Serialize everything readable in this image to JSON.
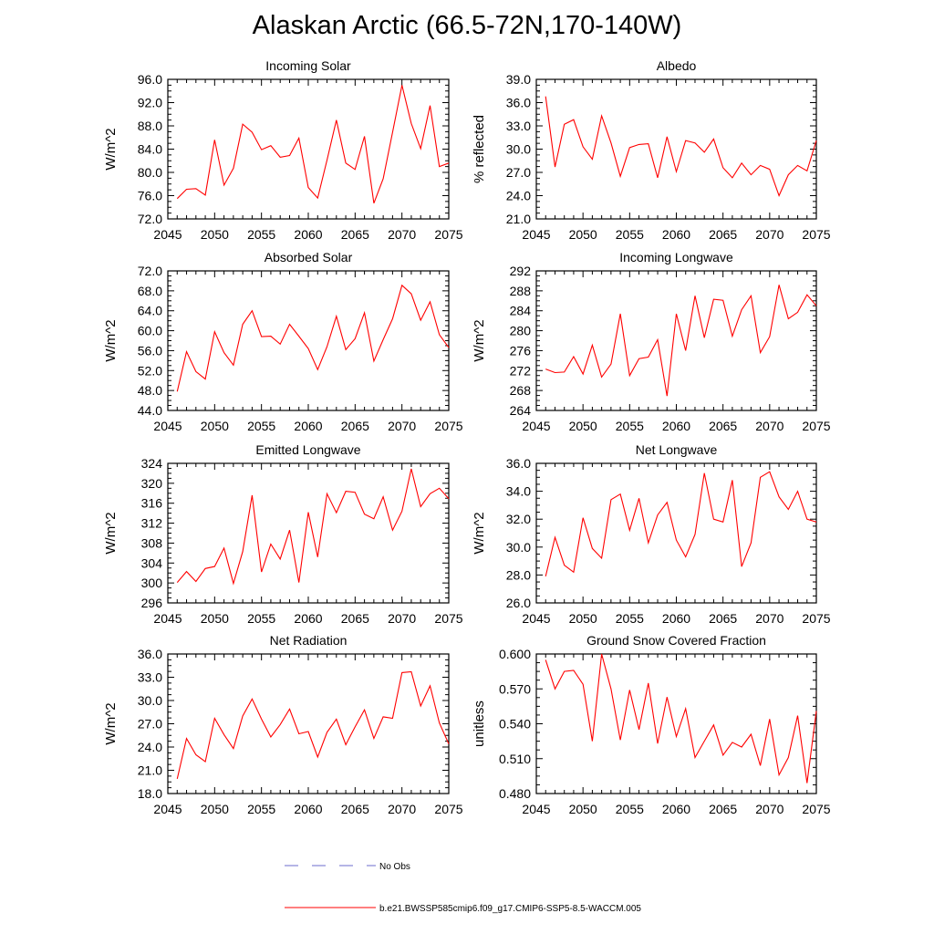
{
  "title": "Alaskan Arctic (66.5-72N,170-140W)",
  "colors": {
    "model": "#ff0000",
    "obs": "#6b6bcc",
    "axis": "#000000"
  },
  "legend": {
    "obs_label": "No Obs",
    "model_label": "b.e21.BWSSP585cmip6.f09_g17.CMIP6-SSP5-8.5-WACCM.005"
  },
  "chart_data": [
    {
      "type": "line",
      "title": "Incoming Solar",
      "ylabel": "W/m^2",
      "xlim": [
        2045,
        2075
      ],
      "ylim": [
        72.0,
        96.0
      ],
      "yticks": [
        "72.0",
        "76.0",
        "80.0",
        "84.0",
        "88.0",
        "92.0",
        "96.0"
      ],
      "xticks": [
        "2045",
        "2050",
        "2055",
        "2060",
        "2065",
        "2070",
        "2075"
      ],
      "series": [
        {
          "name": "b.e21.BWSSP585cmip6.f09_g17.CMIP6-SSP5-8.5-WACCM.005",
          "x": [
            2046,
            2047,
            2048,
            2049,
            2050,
            2051,
            2052,
            2053,
            2054,
            2055,
            2056,
            2057,
            2058,
            2059,
            2060,
            2061,
            2062,
            2063,
            2064,
            2065,
            2066,
            2067,
            2068,
            2069,
            2070,
            2071,
            2072,
            2073,
            2074,
            2075
          ],
          "y": [
            75.5,
            77.1,
            77.2,
            76.1,
            85.6,
            77.8,
            80.7,
            88.3,
            86.9,
            83.9,
            84.6,
            82.6,
            82.9,
            85.9,
            77.4,
            75.6,
            82.1,
            89.0,
            81.6,
            80.5,
            86.2,
            74.7,
            78.9,
            86.9,
            95.0,
            88.4,
            84.1,
            91.5,
            81.0,
            81.6
          ]
        }
      ]
    },
    {
      "type": "line",
      "title": "Albedo",
      "ylabel": "% reflected",
      "xlim": [
        2045,
        2075
      ],
      "ylim": [
        21.0,
        39.0
      ],
      "yticks": [
        "21.0",
        "24.0",
        "27.0",
        "30.0",
        "33.0",
        "36.0",
        "39.0"
      ],
      "xticks": [
        "2045",
        "2050",
        "2055",
        "2060",
        "2065",
        "2070",
        "2075"
      ],
      "series": [
        {
          "name": "b.e21.BWSSP585cmip6.f09_g17.CMIP6-SSP5-8.5-WACCM.005",
          "x": [
            2046,
            2047,
            2048,
            2049,
            2050,
            2051,
            2052,
            2053,
            2054,
            2055,
            2056,
            2057,
            2058,
            2059,
            2060,
            2061,
            2062,
            2063,
            2064,
            2065,
            2066,
            2067,
            2068,
            2069,
            2070,
            2071,
            2072,
            2073,
            2074,
            2075
          ],
          "y": [
            36.8,
            27.7,
            33.2,
            33.8,
            30.3,
            28.7,
            34.3,
            30.8,
            26.5,
            30.2,
            30.6,
            30.7,
            26.3,
            31.6,
            27.1,
            31.1,
            30.8,
            29.6,
            31.3,
            27.6,
            26.3,
            28.2,
            26.7,
            27.9,
            27.4,
            24.0,
            26.7,
            27.9,
            27.2,
            31.1
          ]
        }
      ]
    },
    {
      "type": "line",
      "title": "Absorbed Solar",
      "ylabel": "W/m^2",
      "xlim": [
        2045,
        2075
      ],
      "ylim": [
        44.0,
        72.0
      ],
      "yticks": [
        "44.0",
        "48.0",
        "52.0",
        "56.0",
        "60.0",
        "64.0",
        "68.0",
        "72.0"
      ],
      "xticks": [
        "2045",
        "2050",
        "2055",
        "2060",
        "2065",
        "2070",
        "2075"
      ],
      "series": [
        {
          "name": "b.e21.BWSSP585cmip6.f09_g17.CMIP6-SSP5-8.5-WACCM.005",
          "x": [
            2046,
            2047,
            2048,
            2049,
            2050,
            2051,
            2052,
            2053,
            2054,
            2055,
            2056,
            2057,
            2058,
            2059,
            2060,
            2061,
            2062,
            2063,
            2064,
            2065,
            2066,
            2067,
            2068,
            2069,
            2070,
            2071,
            2072,
            2073,
            2074,
            2075
          ],
          "y": [
            47.8,
            55.8,
            51.8,
            50.3,
            59.8,
            55.6,
            53.1,
            61.3,
            64.0,
            58.8,
            58.9,
            57.3,
            61.3,
            58.9,
            56.4,
            52.2,
            56.8,
            62.9,
            56.2,
            58.4,
            63.6,
            53.9,
            58.2,
            62.4,
            69.1,
            67.4,
            62.1,
            65.8,
            59.2,
            56.6
          ]
        }
      ]
    },
    {
      "type": "line",
      "title": "Incoming Longwave",
      "ylabel": "W/m^2",
      "xlim": [
        2045,
        2075
      ],
      "ylim": [
        264,
        292
      ],
      "yticks": [
        "264",
        "268",
        "272",
        "276",
        "280",
        "284",
        "288",
        "292"
      ],
      "xticks": [
        "2045",
        "2050",
        "2055",
        "2060",
        "2065",
        "2070",
        "2075"
      ],
      "series": [
        {
          "name": "b.e21.BWSSP585cmip6.f09_g17.CMIP6-SSP5-8.5-WACCM.005",
          "x": [
            2046,
            2047,
            2048,
            2049,
            2050,
            2051,
            2052,
            2053,
            2054,
            2055,
            2056,
            2057,
            2058,
            2059,
            2060,
            2061,
            2062,
            2063,
            2064,
            2065,
            2066,
            2067,
            2068,
            2069,
            2070,
            2071,
            2072,
            2073,
            2074,
            2075
          ],
          "y": [
            272.3,
            271.6,
            271.7,
            274.8,
            271.3,
            277.1,
            270.7,
            273.3,
            283.4,
            271.0,
            274.4,
            274.7,
            278.2,
            266.9,
            283.4,
            276.0,
            287.0,
            278.6,
            286.3,
            286.1,
            278.9,
            284.2,
            287.0,
            275.6,
            278.8,
            289.2,
            282.4,
            283.7,
            287.2,
            285.0
          ]
        }
      ]
    },
    {
      "type": "line",
      "title": "Emitted Longwave",
      "ylabel": "W/m^2",
      "xlim": [
        2045,
        2075
      ],
      "ylim": [
        296,
        324
      ],
      "yticks": [
        "296",
        "300",
        "304",
        "308",
        "312",
        "316",
        "320",
        "324"
      ],
      "xticks": [
        "2045",
        "2050",
        "2055",
        "2060",
        "2065",
        "2070",
        "2075"
      ],
      "series": [
        {
          "name": "b.e21.BWSSP585cmip6.f09_g17.CMIP6-SSP5-8.5-WACCM.005",
          "x": [
            2046,
            2047,
            2048,
            2049,
            2050,
            2051,
            2052,
            2053,
            2054,
            2055,
            2056,
            2057,
            2058,
            2059,
            2060,
            2061,
            2062,
            2063,
            2064,
            2065,
            2066,
            2067,
            2068,
            2069,
            2070,
            2071,
            2072,
            2073,
            2074,
            2075
          ],
          "y": [
            300.1,
            302.3,
            300.3,
            302.9,
            303.3,
            307.0,
            299.9,
            306.3,
            317.6,
            302.2,
            307.8,
            304.8,
            310.6,
            300.1,
            314.2,
            305.2,
            317.9,
            314.1,
            318.4,
            318.2,
            313.8,
            312.9,
            317.3,
            310.6,
            314.4,
            322.9,
            315.3,
            317.9,
            319.0,
            316.9
          ]
        }
      ]
    },
    {
      "type": "line",
      "title": "Net Longwave",
      "ylabel": "W/m^2",
      "xlim": [
        2045,
        2075
      ],
      "ylim": [
        26.0,
        36.0
      ],
      "yticks": [
        "26.0",
        "28.0",
        "30.0",
        "32.0",
        "34.0",
        "36.0"
      ],
      "xticks": [
        "2045",
        "2050",
        "2055",
        "2060",
        "2065",
        "2070",
        "2075"
      ],
      "series": [
        {
          "name": "b.e21.BWSSP585cmip6.f09_g17.CMIP6-SSP5-8.5-WACCM.005",
          "x": [
            2046,
            2047,
            2048,
            2049,
            2050,
            2051,
            2052,
            2053,
            2054,
            2055,
            2056,
            2057,
            2058,
            2059,
            2060,
            2061,
            2062,
            2063,
            2064,
            2065,
            2066,
            2067,
            2068,
            2069,
            2070,
            2071,
            2072,
            2073,
            2074,
            2075
          ],
          "y": [
            27.9,
            30.7,
            28.7,
            28.2,
            32.1,
            29.9,
            29.2,
            33.4,
            33.8,
            31.2,
            33.5,
            30.3,
            32.3,
            33.2,
            30.5,
            29.3,
            30.9,
            35.3,
            32.0,
            31.8,
            34.8,
            28.6,
            30.3,
            35.0,
            35.4,
            33.6,
            32.7,
            34.0,
            32.0,
            31.8
          ]
        }
      ]
    },
    {
      "type": "line",
      "title": "Net Radiation",
      "ylabel": "W/m^2",
      "xlim": [
        2045,
        2075
      ],
      "ylim": [
        18.0,
        36.0
      ],
      "yticks": [
        "18.0",
        "21.0",
        "24.0",
        "27.0",
        "30.0",
        "33.0",
        "36.0"
      ],
      "xticks": [
        "2045",
        "2050",
        "2055",
        "2060",
        "2065",
        "2070",
        "2075"
      ],
      "series": [
        {
          "name": "b.e21.BWSSP585cmip6.f09_g17.CMIP6-SSP5-8.5-WACCM.005",
          "x": [
            2046,
            2047,
            2048,
            2049,
            2050,
            2051,
            2052,
            2053,
            2054,
            2055,
            2056,
            2057,
            2058,
            2059,
            2060,
            2061,
            2062,
            2063,
            2064,
            2065,
            2066,
            2067,
            2068,
            2069,
            2070,
            2071,
            2072,
            2073,
            2074,
            2075
          ],
          "y": [
            19.9,
            25.1,
            23.0,
            22.1,
            27.7,
            25.6,
            23.8,
            28.0,
            30.2,
            27.6,
            25.3,
            26.9,
            28.9,
            25.7,
            26.0,
            22.7,
            25.9,
            27.6,
            24.3,
            26.6,
            28.8,
            25.1,
            27.9,
            27.7,
            33.6,
            33.7,
            29.3,
            31.9,
            27.1,
            24.4
          ]
        }
      ]
    },
    {
      "type": "line",
      "title": "Ground Snow Covered Fraction",
      "ylabel": "unitless",
      "xlim": [
        2045,
        2075
      ],
      "ylim": [
        0.48,
        0.6
      ],
      "yticks": [
        "0.480",
        "0.510",
        "0.540",
        "0.570",
        "0.600"
      ],
      "xticks": [
        "2045",
        "2050",
        "2055",
        "2060",
        "2065",
        "2070",
        "2075"
      ],
      "series": [
        {
          "name": "b.e21.BWSSP585cmip6.f09_g17.CMIP6-SSP5-8.5-WACCM.005",
          "x": [
            2046,
            2047,
            2048,
            2049,
            2050,
            2051,
            2052,
            2053,
            2054,
            2055,
            2056,
            2057,
            2058,
            2059,
            2060,
            2061,
            2062,
            2063,
            2064,
            2065,
            2066,
            2067,
            2068,
            2069,
            2070,
            2071,
            2072,
            2073,
            2074,
            2075
          ],
          "y": [
            0.595,
            0.57,
            0.585,
            0.586,
            0.574,
            0.525,
            0.6,
            0.57,
            0.526,
            0.569,
            0.535,
            0.575,
            0.523,
            0.563,
            0.529,
            0.553,
            0.511,
            0.525,
            0.539,
            0.513,
            0.524,
            0.52,
            0.531,
            0.504,
            0.544,
            0.496,
            0.511,
            0.547,
            0.489,
            0.551
          ]
        }
      ]
    }
  ]
}
